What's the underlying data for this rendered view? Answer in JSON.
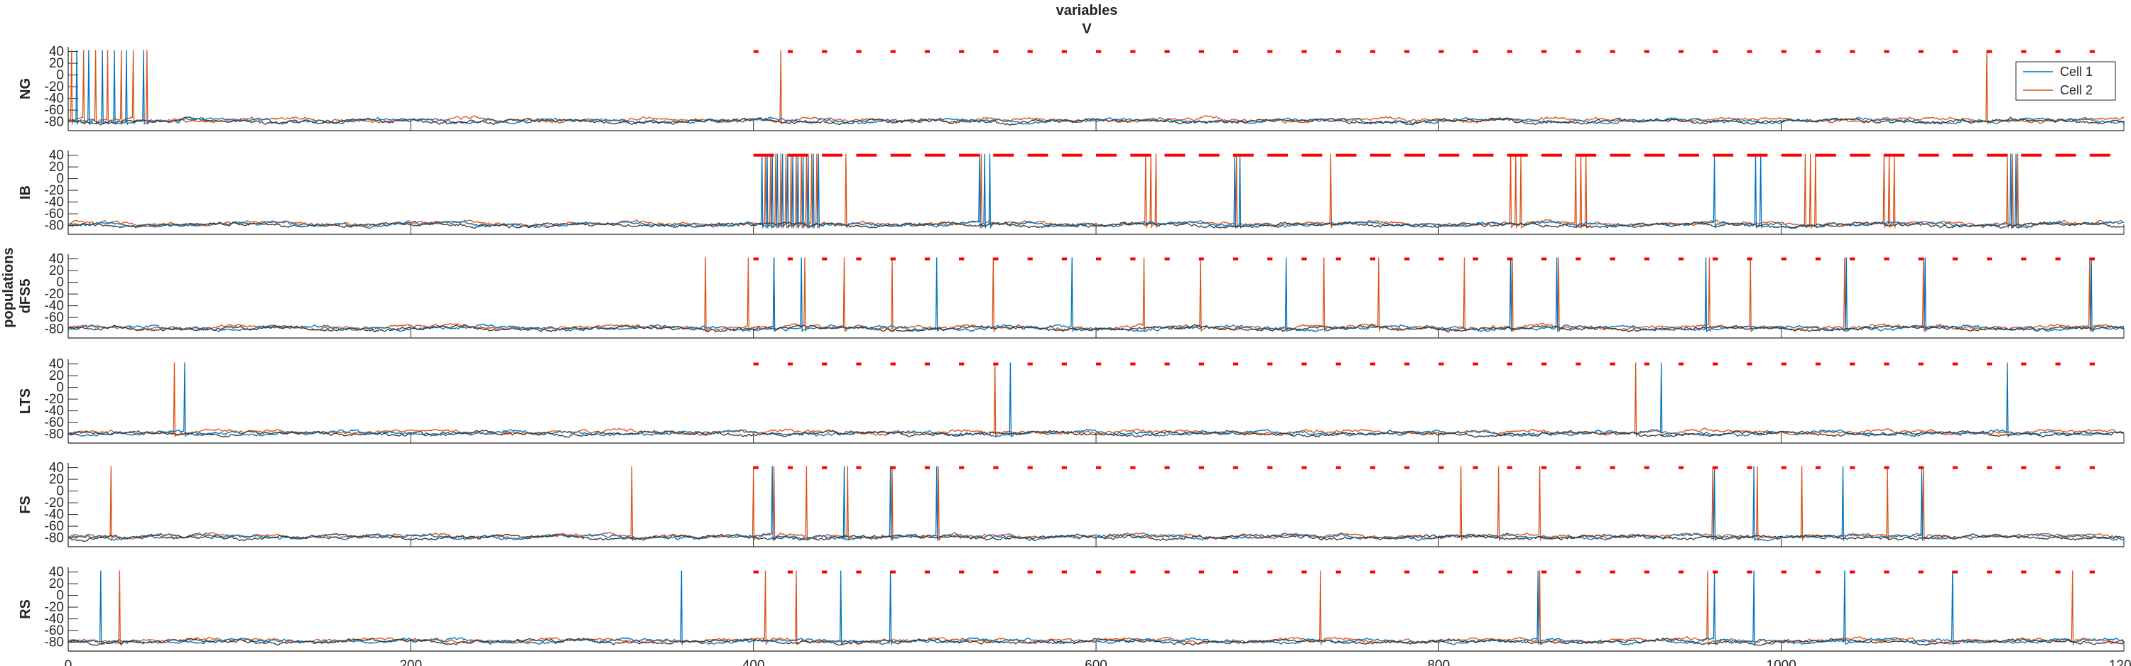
{
  "figure": {
    "title_line1": "variables",
    "title_line2": "V",
    "group_label": "populations"
  },
  "colors": {
    "cell1": "#0072BD",
    "cell2": "#D95319",
    "cell_dark": "#3a3a3a",
    "marker": "#ff0000",
    "axis": "#262626"
  },
  "legend": {
    "entries": [
      "Cell 1",
      "Cell 2"
    ],
    "location": "top-right of first panel"
  },
  "chart_data": {
    "type": "line",
    "xlim": [
      0,
      1200
    ],
    "x_ticks": [
      "0",
      "200",
      "400",
      "600",
      "800",
      "1000",
      "1200"
    ],
    "x_tick_values": [
      0,
      200,
      400,
      600,
      800,
      1000,
      1200
    ],
    "ylim": [
      -95,
      48
    ],
    "y_ticks": [
      "40",
      "20",
      "0",
      "-20",
      "-40",
      "-60",
      "-80"
    ],
    "y_tick_values": [
      40,
      20,
      0,
      -20,
      -40,
      -60,
      -80
    ],
    "baseline": -78,
    "marker_level": 40,
    "grid": false,
    "series_names": [
      "Cell 1",
      "Cell 2"
    ],
    "panels": [
      {
        "label": "NG",
        "spikes_cell1": [
          5,
          12,
          20,
          27,
          34,
          44
        ],
        "spikes_cell2": [
          2,
          9,
          16,
          23,
          31,
          38,
          46,
          416,
          1120
        ],
        "markers": [
          400,
          1200,
          20
        ],
        "marker_len": 3
      },
      {
        "label": "IB",
        "spikes_cell1": [
          405,
          408,
          411,
          414,
          417,
          420,
          423,
          426,
          429,
          432,
          435,
          438,
          532,
          535,
          538,
          681,
          684,
          961,
          985,
          988,
          1134,
          1137
        ],
        "spikes_cell2": [
          407,
          410,
          413,
          416,
          419,
          422,
          425,
          428,
          431,
          434,
          437,
          454,
          533,
          629,
          632,
          635,
          682,
          737,
          842,
          845,
          848,
          880,
          883,
          886,
          1014,
          1017,
          1020,
          1060,
          1063,
          1066,
          1132,
          1135,
          1138
        ],
        "markers": [
          400,
          1200,
          20
        ],
        "marker_len": 12
      },
      {
        "label": "dFS5",
        "spikes_cell1": [
          412,
          428,
          507,
          586,
          711,
          842,
          869,
          956,
          1038,
          1084,
          1181
        ],
        "spikes_cell2": [
          372,
          397,
          412,
          430,
          453,
          481,
          540,
          628,
          661,
          733,
          765,
          815,
          843,
          870,
          958,
          982,
          1037,
          1083,
          1180
        ],
        "markers": [
          400,
          1200,
          20
        ],
        "marker_len": 3
      },
      {
        "label": "LTS",
        "spikes_cell1": [
          68,
          550,
          930,
          1132
        ],
        "spikes_cell2": [
          62,
          541,
          915
        ],
        "markers": [
          400,
          1200,
          20
        ],
        "marker_len": 3
      },
      {
        "label": "FS",
        "spikes_cell1": [
          411,
          453,
          480,
          507,
          961,
          984,
          1036,
          1082
        ],
        "spikes_cell2": [
          25,
          329,
          400,
          412,
          431,
          455,
          481,
          508,
          813,
          835,
          859,
          960,
          986,
          1012,
          1062,
          1083
        ],
        "markers": [
          400,
          1200,
          20
        ],
        "marker_len": 3
      },
      {
        "label": "RS",
        "spikes_cell1": [
          19,
          358,
          451,
          480,
          858,
          961,
          984,
          1037,
          1100
        ],
        "spikes_cell2": [
          30,
          407,
          425,
          731,
          859,
          957,
          1170
        ],
        "markers": [
          400,
          1200,
          20
        ],
        "marker_len": 3
      }
    ]
  }
}
